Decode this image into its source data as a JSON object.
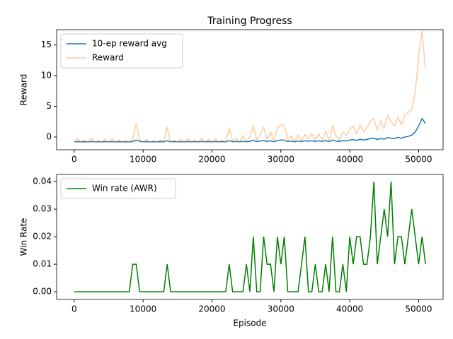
{
  "chart_data": [
    {
      "type": "line",
      "title": "Training Progress",
      "y_label": "Reward",
      "legend": "upper left",
      "grid": false,
      "x": [
        0,
        500,
        1000,
        1500,
        2000,
        2500,
        3000,
        3500,
        4000,
        4500,
        5000,
        5500,
        6000,
        6500,
        7000,
        7500,
        8000,
        8500,
        9000,
        9500,
        10000,
        10500,
        11000,
        11500,
        12000,
        12500,
        13000,
        13500,
        14000,
        14500,
        15000,
        15500,
        16000,
        16500,
        17000,
        17500,
        18000,
        18500,
        19000,
        19500,
        20000,
        20500,
        21000,
        21500,
        22000,
        22500,
        23000,
        23500,
        24000,
        24500,
        25000,
        25500,
        26000,
        26500,
        27000,
        27500,
        28000,
        28500,
        29000,
        29500,
        30000,
        30500,
        31000,
        31500,
        32000,
        32500,
        33000,
        33500,
        34000,
        34500,
        35000,
        35500,
        36000,
        36500,
        37000,
        37500,
        38000,
        38500,
        39000,
        39500,
        40000,
        40500,
        41000,
        41500,
        42000,
        42500,
        43000,
        43500,
        44000,
        44500,
        45000,
        45500,
        46000,
        46500,
        47000,
        47500,
        48000,
        48500,
        49000,
        49500,
        50000,
        50500,
        51000
      ],
      "series": [
        {
          "name": "10-ep reward avg",
          "color": "#1f77b4",
          "alpha": 1,
          "values": [
            -0.8,
            -0.75,
            -0.8,
            -0.78,
            -0.8,
            -0.74,
            -0.8,
            -0.77,
            -0.8,
            -0.76,
            -0.8,
            -0.75,
            -0.8,
            -0.77,
            -0.8,
            -0.78,
            -0.8,
            -0.74,
            -0.5,
            -0.7,
            -0.8,
            -0.76,
            -0.8,
            -0.77,
            -0.8,
            -0.76,
            -0.8,
            -0.6,
            -0.8,
            -0.76,
            -0.8,
            -0.75,
            -0.8,
            -0.74,
            -0.8,
            -0.76,
            -0.8,
            -0.73,
            -0.8,
            -0.75,
            -0.8,
            -0.74,
            -0.8,
            -0.76,
            -0.8,
            -0.6,
            -0.78,
            -0.72,
            -0.8,
            -0.68,
            -0.8,
            -0.7,
            -0.55,
            -0.75,
            -0.66,
            -0.58,
            -0.74,
            -0.62,
            -0.76,
            -0.6,
            -0.5,
            -0.52,
            -0.74,
            -0.66,
            -0.8,
            -0.64,
            -0.76,
            -0.62,
            -0.7,
            -0.6,
            -0.74,
            -0.62,
            -0.72,
            -0.56,
            -0.76,
            -0.5,
            -0.66,
            -0.74,
            -0.58,
            -0.66,
            -0.5,
            -0.42,
            -0.56,
            -0.38,
            -0.5,
            -0.4,
            -0.25,
            -0.2,
            -0.4,
            -0.25,
            -0.35,
            -0.1,
            -0.2,
            -0.28,
            -0.05,
            -0.2,
            0.0,
            0.1,
            0.3,
            0.8,
            1.8,
            3.0,
            2.2
          ]
        },
        {
          "name": "Reward",
          "color": "#ff7f0e",
          "alpha": 0.4,
          "values": [
            -0.8,
            -0.3,
            -0.8,
            -0.5,
            -0.8,
            -0.2,
            -0.8,
            -0.6,
            -0.8,
            -0.4,
            -0.8,
            -0.3,
            -0.8,
            -0.5,
            -0.8,
            -0.6,
            -0.8,
            -0.3,
            2.2,
            -0.5,
            -0.8,
            -0.4,
            -0.8,
            -0.6,
            -0.8,
            -0.5,
            -0.8,
            1.6,
            -0.8,
            -0.5,
            -0.8,
            -0.4,
            -0.8,
            -0.3,
            -0.8,
            -0.5,
            -0.8,
            -0.2,
            -0.8,
            -0.4,
            -0.8,
            -0.3,
            -0.8,
            -0.5,
            -0.8,
            1.4,
            -0.6,
            -0.2,
            -0.8,
            0.2,
            -0.8,
            0.0,
            1.8,
            -0.5,
            0.3,
            1.6,
            -0.4,
            0.8,
            -0.6,
            1.5,
            2.0,
            1.9,
            -0.5,
            0.2,
            -0.8,
            0.3,
            -0.6,
            0.4,
            -0.3,
            0.6,
            -0.5,
            0.5,
            -0.4,
            0.9,
            -0.6,
            1.8,
            0.2,
            -0.5,
            0.8,
            0.2,
            1.2,
            1.8,
            0.5,
            2.0,
            0.8,
            1.5,
            2.6,
            3.0,
            1.2,
            2.6,
            1.4,
            3.5,
            2.5,
            1.8,
            3.2,
            2.0,
            3.5,
            4.0,
            4.5,
            7.2,
            13.2,
            17.3,
            11.0
          ]
        }
      ],
      "xlim": [
        -2550,
        53550
      ],
      "xticks": [
        0,
        10000,
        20000,
        30000,
        40000,
        50000
      ],
      "ylim": [
        -2.08,
        17.5
      ],
      "yticks": [
        0,
        5,
        10,
        15
      ]
    },
    {
      "type": "line",
      "x_label": "Episode",
      "y_label": "Win Rate",
      "legend": "upper left",
      "grid": false,
      "x": [
        0,
        500,
        1000,
        1500,
        2000,
        2500,
        3000,
        3500,
        4000,
        4500,
        5000,
        5500,
        6000,
        6500,
        7000,
        7500,
        8000,
        8500,
        9000,
        9500,
        10000,
        10500,
        11000,
        11500,
        12000,
        12500,
        13000,
        13500,
        14000,
        14500,
        15000,
        15500,
        16000,
        16500,
        17000,
        17500,
        18000,
        18500,
        19000,
        19500,
        20000,
        20500,
        21000,
        21500,
        22000,
        22500,
        23000,
        23500,
        24000,
        24500,
        25000,
        25500,
        26000,
        26500,
        27000,
        27500,
        28000,
        28500,
        29000,
        29500,
        30000,
        30500,
        31000,
        31500,
        32000,
        32500,
        33000,
        33500,
        34000,
        34500,
        35000,
        35500,
        36000,
        36500,
        37000,
        37500,
        38000,
        38500,
        39000,
        39500,
        40000,
        40500,
        41000,
        41500,
        42000,
        42500,
        43000,
        43500,
        44000,
        44500,
        45000,
        45500,
        46000,
        46500,
        47000,
        47500,
        48000,
        48500,
        49000,
        49500,
        50000,
        50500,
        51000
      ],
      "series": [
        {
          "name": "Win rate (AWR)",
          "color": "#008000",
          "alpha": 1,
          "values": [
            0,
            0,
            0,
            0,
            0,
            0,
            0,
            0,
            0,
            0,
            0,
            0,
            0,
            0,
            0,
            0,
            0,
            0.01,
            0.01,
            0,
            0,
            0,
            0,
            0,
            0,
            0,
            0,
            0.01,
            0,
            0,
            0,
            0,
            0,
            0,
            0,
            0,
            0,
            0,
            0,
            0,
            0,
            0,
            0,
            0,
            0,
            0.01,
            0,
            0,
            0,
            0,
            0.01,
            0,
            0.02,
            0,
            0,
            0.02,
            0.01,
            0.01,
            0,
            0.02,
            0.01,
            0.02,
            0,
            0,
            0,
            0,
            0.01,
            0.02,
            0,
            0,
            0.01,
            0,
            0,
            0.01,
            0,
            0.02,
            0,
            0,
            0.01,
            0,
            0.02,
            0.01,
            0.02,
            0.02,
            0.01,
            0.01,
            0.02,
            0.04,
            0.01,
            0.02,
            0.03,
            0.02,
            0.04,
            0.01,
            0.02,
            0.02,
            0.01,
            0.02,
            0.03,
            0.02,
            0.01,
            0.02,
            0.01
          ]
        }
      ],
      "xlim": [
        -2550,
        53550
      ],
      "xticks": [
        0,
        10000,
        20000,
        30000,
        40000,
        50000
      ],
      "ylim": [
        -0.0028,
        0.0426
      ],
      "yticks": [
        {
          "value": 0,
          "label": "0.00"
        },
        0.01,
        0.02,
        0.03,
        0.04
      ]
    }
  ]
}
